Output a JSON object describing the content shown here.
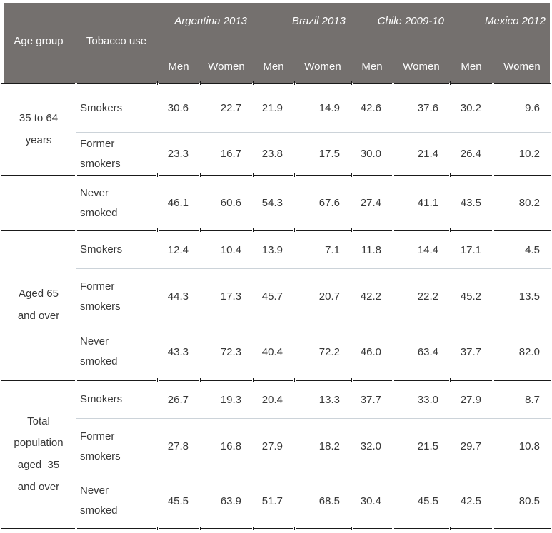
{
  "colors": {
    "header_bg": "#74706e",
    "header_text": "#fdfdfd",
    "body_text": "#383838",
    "thick_rule": "#1a1a1a",
    "thin_rule": "#ccd3d9"
  },
  "header": {
    "age_group": "Age group",
    "tobacco_use": "Tobacco use",
    "countries": [
      "Argentina 2013",
      "Brazil 2013",
      "Chile 2009-10",
      "Mexico 2012"
    ],
    "sex": [
      "Men",
      "Women",
      "Men",
      "Women",
      "Men",
      "Women",
      "Men",
      "Women"
    ]
  },
  "groups": [
    {
      "age": "35 to 64\nyears",
      "rows": [
        {
          "label": "Smokers",
          "v": [
            "30.6",
            "22.7",
            "21.9",
            "14.9",
            "42.6",
            "37.6",
            "30.2",
            "9.6"
          ]
        },
        {
          "label": "Former\nsmokers",
          "v": [
            "23.3",
            "16.7",
            "23.8",
            "17.5",
            "30.0",
            "21.4",
            "26.4",
            "10.2"
          ]
        }
      ]
    },
    {
      "age": "",
      "rows": [
        {
          "label": "Never\nsmoked",
          "v": [
            "46.1",
            "60.6",
            "54.3",
            "67.6",
            "27.4",
            "41.1",
            "43.5",
            "80.2"
          ]
        }
      ]
    },
    {
      "age": "Aged 65\nand over",
      "rows": [
        {
          "label": "Smokers",
          "v": [
            "12.4",
            "10.4",
            "13.9",
            "7.1",
            "11.8",
            "14.4",
            "17.1",
            "4.5"
          ]
        },
        {
          "label": "Former\nsmokers",
          "v": [
            "44.3",
            "17.3",
            "45.7",
            "20.7",
            "42.2",
            "22.2",
            "45.2",
            "13.5"
          ]
        },
        {
          "label": "Never\nsmoked",
          "v": [
            "43.3",
            "72.3",
            "40.4",
            "72.2",
            "46.0",
            "63.4",
            "37.7",
            "82.0"
          ]
        }
      ]
    },
    {
      "age": "Total\npopulation\naged  35\nand over",
      "rows": [
        {
          "label": "Smokers",
          "v": [
            "26.7",
            "19.3",
            "20.4",
            "13.3",
            "37.7",
            "33.0",
            "27.9",
            "8.7"
          ]
        },
        {
          "label": "Former\nsmokers",
          "v": [
            "27.8",
            "16.8",
            "27.9",
            "18.2",
            "32.0",
            "21.5",
            "29.7",
            "10.8"
          ]
        },
        {
          "label": "Never\nsmoked",
          "v": [
            "45.5",
            "63.9",
            "51.7",
            "68.5",
            "30.4",
            "45.5",
            "42.5",
            "80.5"
          ]
        }
      ]
    }
  ],
  "chart_data": {
    "type": "table",
    "column_groups": [
      {
        "name": "Argentina 2013",
        "sub": [
          "Men",
          "Women"
        ]
      },
      {
        "name": "Brazil 2013",
        "sub": [
          "Men",
          "Women"
        ]
      },
      {
        "name": "Chile 2009-10",
        "sub": [
          "Men",
          "Women"
        ]
      },
      {
        "name": "Mexico 2012",
        "sub": [
          "Men",
          "Women"
        ]
      }
    ],
    "row_headers": [
      "Age group",
      "Tobacco use"
    ],
    "rows": [
      {
        "age_group": "35 to 64 years",
        "tobacco_use": "Smokers",
        "values": [
          30.6,
          22.7,
          21.9,
          14.9,
          42.6,
          37.6,
          30.2,
          9.6
        ]
      },
      {
        "age_group": "35 to 64 years",
        "tobacco_use": "Former smokers",
        "values": [
          23.3,
          16.7,
          23.8,
          17.5,
          30.0,
          21.4,
          26.4,
          10.2
        ]
      },
      {
        "age_group": "35 to 64 years",
        "tobacco_use": "Never smoked",
        "values": [
          46.1,
          60.6,
          54.3,
          67.6,
          27.4,
          41.1,
          43.5,
          80.2
        ]
      },
      {
        "age_group": "Aged 65 and over",
        "tobacco_use": "Smokers",
        "values": [
          12.4,
          10.4,
          13.9,
          7.1,
          11.8,
          14.4,
          17.1,
          4.5
        ]
      },
      {
        "age_group": "Aged 65 and over",
        "tobacco_use": "Former smokers",
        "values": [
          44.3,
          17.3,
          45.7,
          20.7,
          42.2,
          22.2,
          45.2,
          13.5
        ]
      },
      {
        "age_group": "Aged 65 and over",
        "tobacco_use": "Never smoked",
        "values": [
          43.3,
          72.3,
          40.4,
          72.2,
          46.0,
          63.4,
          37.7,
          82.0
        ]
      },
      {
        "age_group": "Total population aged 35 and over",
        "tobacco_use": "Smokers",
        "values": [
          26.7,
          19.3,
          20.4,
          13.3,
          37.7,
          33.0,
          27.9,
          8.7
        ]
      },
      {
        "age_group": "Total population aged 35 and over",
        "tobacco_use": "Former smokers",
        "values": [
          27.8,
          16.8,
          27.9,
          18.2,
          32.0,
          21.5,
          29.7,
          10.8
        ]
      },
      {
        "age_group": "Total population aged 35 and over",
        "tobacco_use": "Never smoked",
        "values": [
          45.5,
          63.9,
          51.7,
          68.5,
          30.4,
          45.5,
          42.5,
          80.5
        ]
      }
    ]
  }
}
